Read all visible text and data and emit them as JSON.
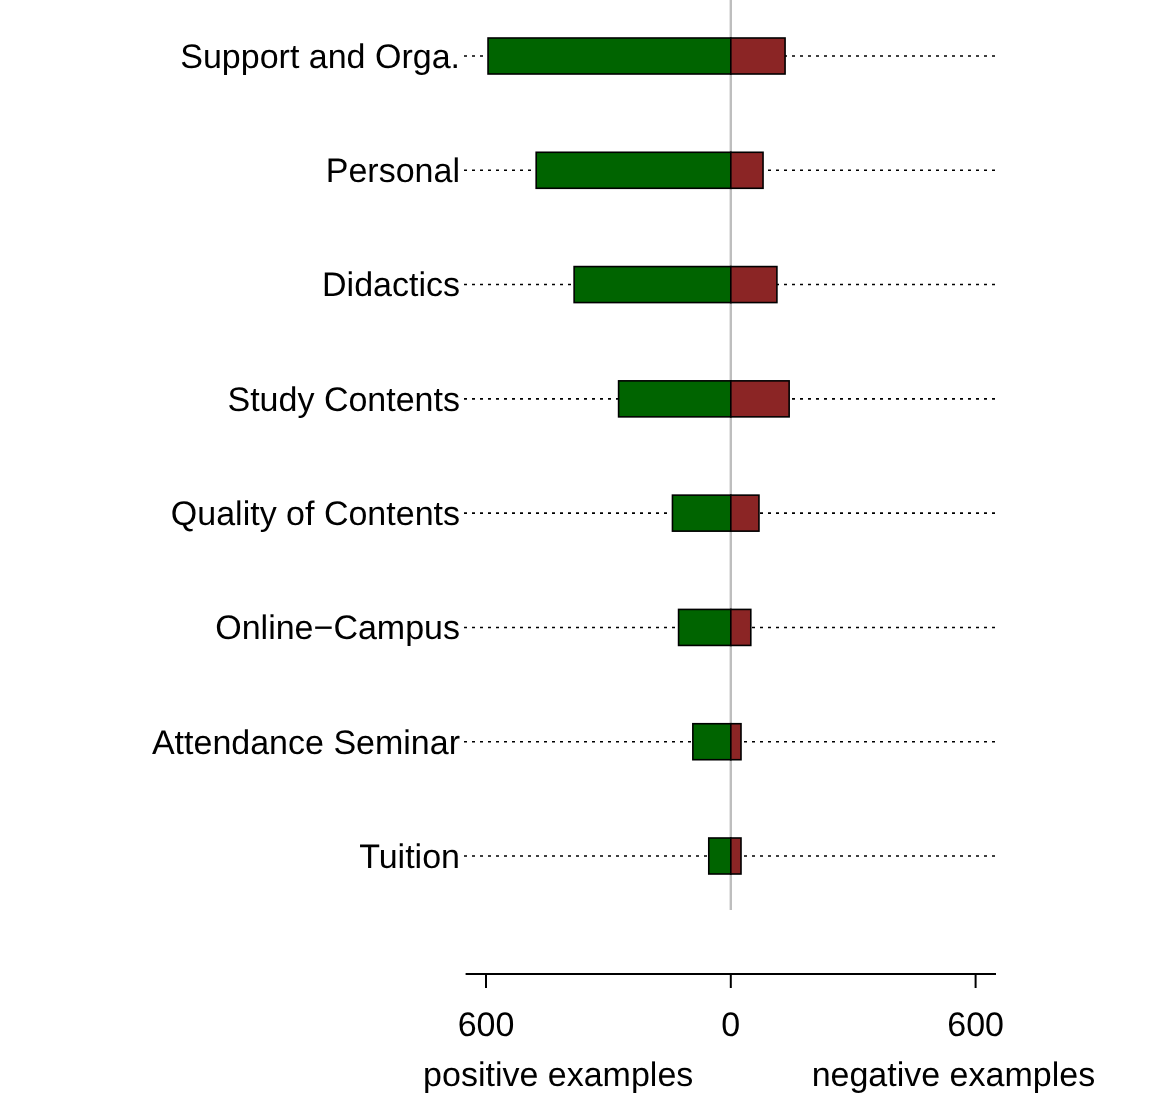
{
  "chart_data": {
    "type": "bar",
    "orientation": "horizontal",
    "stacked": true,
    "categories": [
      "Support and Orga.",
      "Personal",
      "Didactics",
      "Study Contents",
      "Quality of Contents",
      "Online−Campus",
      "Attendance Seminar",
      "Tuition"
    ],
    "series": [
      {
        "color": "#006400",
        "values": [
          -595,
          -477,
          -384,
          -275,
          -143,
          -128,
          -93,
          -54
        ]
      },
      {
        "color": "#8b2525",
        "values": [
          133,
          79,
          113,
          143,
          69,
          49,
          25,
          25
        ]
      }
    ],
    "xlim": [
      -650,
      650
    ],
    "xticks": [
      {
        "value": -600,
        "label": "600"
      },
      0,
      {
        "value": 600,
        "label": "600"
      }
    ],
    "ref_lines": [
      {
        "axis": "x",
        "value": 0,
        "color": "#bebebe"
      }
    ],
    "grid": "y",
    "line_style": "dotted",
    "annotations": [
      "positive examples",
      "negative examples"
    ]
  }
}
